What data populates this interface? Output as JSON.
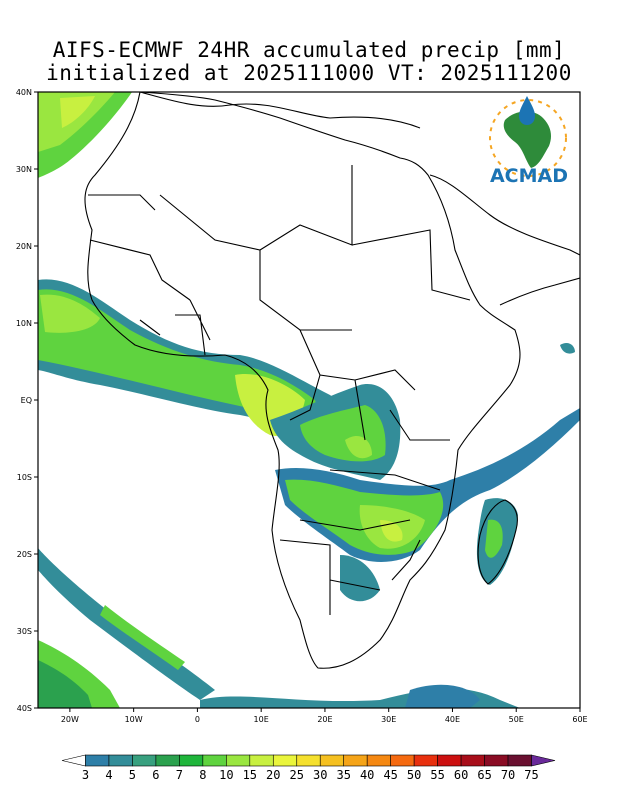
{
  "title_line1": "AIFS-ECMWF 24HR accumulated precip [mm]",
  "title_line2": "initialized at 2025111000 VT: 2025111200",
  "logo": {
    "text": "ACMAD",
    "color": "#1c74b4",
    "accent": "#f5a623",
    "icon": "africa-map-raindrop-logo"
  },
  "map": {
    "lon_range": [
      -25,
      60
    ],
    "lat_range": [
      -40,
      40
    ],
    "lat_ticks": [
      {
        "value": 40,
        "label": "40N"
      },
      {
        "value": 30,
        "label": "30N"
      },
      {
        "value": 20,
        "label": "20N"
      },
      {
        "value": 10,
        "label": "10N"
      },
      {
        "value": 0,
        "label": "EQ"
      },
      {
        "value": -10,
        "label": "10S"
      },
      {
        "value": -20,
        "label": "20S"
      },
      {
        "value": -30,
        "label": "30S"
      },
      {
        "value": -40,
        "label": "40S"
      }
    ],
    "lon_ticks": [
      {
        "value": -20,
        "label": "20W"
      },
      {
        "value": -10,
        "label": "10W"
      },
      {
        "value": 0,
        "label": "0"
      },
      {
        "value": 10,
        "label": "10E"
      },
      {
        "value": 20,
        "label": "20E"
      },
      {
        "value": 30,
        "label": "30E"
      },
      {
        "value": 40,
        "label": "40E"
      },
      {
        "value": 50,
        "label": "50E"
      },
      {
        "value": 60,
        "label": "60E"
      }
    ]
  },
  "colorbar": {
    "levels": [
      "3",
      "4",
      "5",
      "6",
      "7",
      "8",
      "10",
      "15",
      "20",
      "25",
      "30",
      "35",
      "40",
      "45",
      "50",
      "55",
      "60",
      "65",
      "70",
      "75"
    ],
    "colors": [
      "#ffffff",
      "#2e7fa8",
      "#338d99",
      "#38a07f",
      "#2ba14e",
      "#1fb53b",
      "#5fd33f",
      "#9ae640",
      "#c8f040",
      "#eaf53c",
      "#f5e02e",
      "#f5c020",
      "#f5a418",
      "#f58812",
      "#f56a10",
      "#e8300e",
      "#cc1010",
      "#a80e1a",
      "#8a0c24",
      "#6a1030",
      "#6a2a9a"
    ]
  }
}
